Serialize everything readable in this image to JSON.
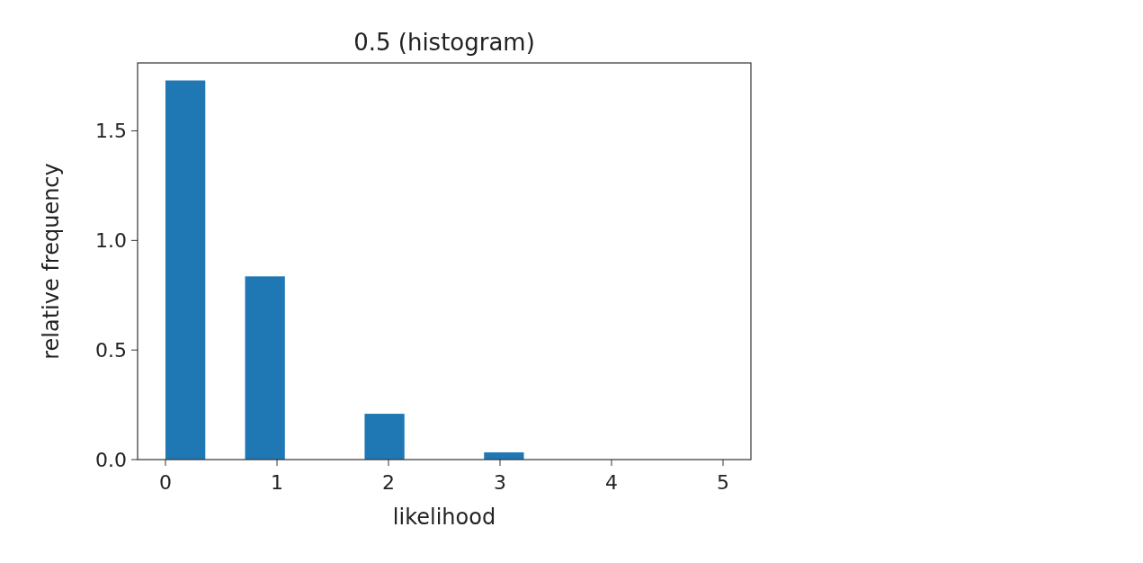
{
  "chart_data": {
    "type": "histogram",
    "title": "0.5 (histogram)",
    "xlabel": "likelihood",
    "ylabel": "relative frequency",
    "bins": [
      0,
      0.357,
      0.714,
      1.071,
      1.429,
      1.786,
      2.143,
      2.5,
      2.857,
      3.214,
      3.571,
      3.929,
      4.286,
      4.643,
      5
    ],
    "values": [
      1.73,
      0,
      0.836,
      0,
      0,
      0.209,
      0,
      0,
      0.033,
      0,
      0,
      0,
      0,
      0
    ],
    "color": "#1f77b4",
    "xlim": [
      -0.25,
      5.25
    ],
    "xticks": [
      0,
      1,
      2,
      3,
      4,
      5
    ],
    "ylim": [
      0,
      1.81
    ],
    "yticks": [
      {
        "value": 0,
        "label": "0.0"
      },
      {
        "value": 0.5,
        "label": "0.5"
      },
      {
        "value": 1,
        "label": "1.0"
      },
      {
        "value": 1.5,
        "label": "1.5"
      }
    ],
    "grid": false
  }
}
